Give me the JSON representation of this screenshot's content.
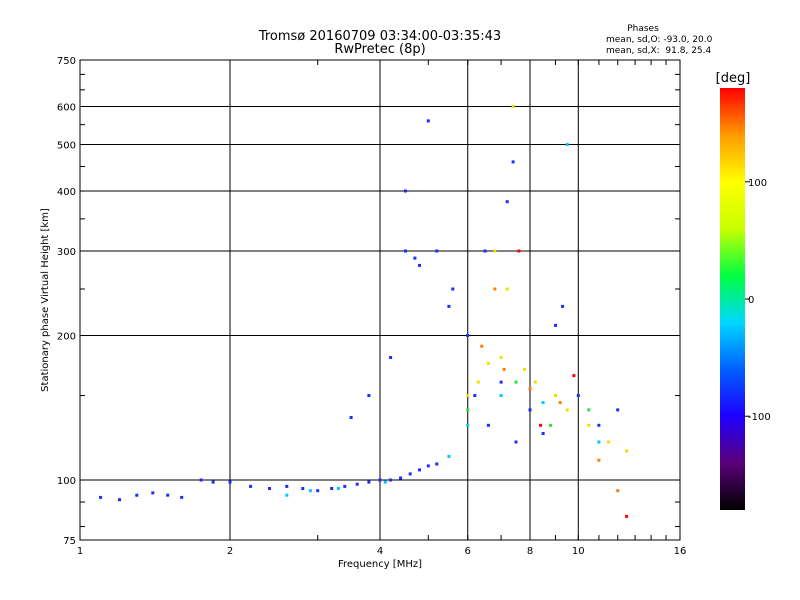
{
  "chart_data": {
    "type": "scatter",
    "title": "Tromsø 20160709 03:34:00-03:35:43",
    "subtitle": "RwPretec (8p)",
    "xlabel": "Frequency [MHz]",
    "ylabel": "Stationary phase Virtual Height [km]",
    "x_scale": "log2",
    "y_scale": "log",
    "xlim": [
      1,
      16
    ],
    "ylim": [
      75,
      750
    ],
    "x_ticks": [
      1,
      2,
      4,
      6,
      8,
      10,
      16
    ],
    "y_ticks": [
      75,
      100,
      200,
      300,
      400,
      500,
      600,
      750
    ],
    "grid": true,
    "phases_box": {
      "title": "Phases",
      "line1": "mean, sd,O: -93.0, 20.0",
      "line2": "mean, sd,X:  91.8, 25.4"
    },
    "colorbar": {
      "label": "[deg]",
      "range": [
        -180,
        180
      ],
      "ticks": [
        100,
        0,
        -100
      ],
      "colors": [
        "#000000",
        "#5a0078",
        "#1e00ff",
        "#0060ff",
        "#00d8ff",
        "#00ff40",
        "#c8ff00",
        "#ffff00",
        "#ff9a00",
        "#ff0000"
      ]
    },
    "series": [
      {
        "color": "#1f2bff",
        "points": [
          [
            1.1,
            92
          ],
          [
            1.2,
            91
          ],
          [
            1.3,
            93
          ],
          [
            1.4,
            94
          ],
          [
            1.5,
            93
          ],
          [
            1.6,
            92
          ],
          [
            1.75,
            100
          ],
          [
            1.85,
            99
          ],
          [
            2.0,
            99
          ],
          [
            2.2,
            97
          ],
          [
            2.4,
            96
          ],
          [
            2.6,
            97
          ],
          [
            2.8,
            96
          ],
          [
            3.0,
            95
          ],
          [
            3.2,
            96
          ],
          [
            3.4,
            97
          ],
          [
            3.6,
            98
          ],
          [
            3.8,
            99
          ],
          [
            4.0,
            100
          ],
          [
            4.2,
            100
          ],
          [
            4.4,
            101
          ],
          [
            4.6,
            103
          ],
          [
            4.8,
            105
          ],
          [
            5.0,
            107
          ],
          [
            5.2,
            108
          ],
          [
            3.5,
            135
          ],
          [
            3.8,
            150
          ],
          [
            4.2,
            180
          ],
          [
            4.5,
            300
          ],
          [
            4.7,
            290
          ],
          [
            4.8,
            280
          ],
          [
            4.5,
            400
          ],
          [
            5.2,
            300
          ],
          [
            5.6,
            250
          ],
          [
            6.0,
            200
          ],
          [
            6.2,
            150
          ],
          [
            6.6,
            130
          ],
          [
            7.0,
            160
          ],
          [
            7.5,
            120
          ],
          [
            8.0,
            140
          ],
          [
            8.5,
            125
          ],
          [
            9.0,
            210
          ],
          [
            9.3,
            230
          ],
          [
            10.0,
            150
          ],
          [
            11.0,
            130
          ],
          [
            12.0,
            140
          ],
          [
            5.5,
            230
          ],
          [
            6.5,
            300
          ],
          [
            7.2,
            380
          ],
          [
            7.4,
            460
          ],
          [
            5.0,
            560
          ]
        ]
      },
      {
        "color": "#00c8ff",
        "points": [
          [
            2.6,
            93
          ],
          [
            2.9,
            95
          ],
          [
            3.3,
            96
          ],
          [
            4.1,
            99
          ],
          [
            5.5,
            112
          ],
          [
            6.0,
            130
          ],
          [
            7.0,
            150
          ],
          [
            8.5,
            145
          ],
          [
            9.5,
            500
          ],
          [
            11.0,
            120
          ]
        ]
      },
      {
        "color": "#f0e000",
        "points": [
          [
            6.0,
            150
          ],
          [
            6.3,
            160
          ],
          [
            6.6,
            175
          ],
          [
            7.0,
            180
          ],
          [
            7.4,
            600
          ],
          [
            7.8,
            170
          ],
          [
            8.2,
            160
          ],
          [
            9.0,
            150
          ],
          [
            9.5,
            140
          ],
          [
            10.5,
            130
          ],
          [
            11.5,
            120
          ],
          [
            12.5,
            115
          ],
          [
            6.8,
            300
          ],
          [
            7.2,
            250
          ]
        ]
      },
      {
        "color": "#ff8000",
        "points": [
          [
            6.4,
            190
          ],
          [
            7.1,
            170
          ],
          [
            8.0,
            155
          ],
          [
            9.2,
            145
          ],
          [
            11.0,
            110
          ],
          [
            12.0,
            95
          ],
          [
            6.8,
            250
          ]
        ]
      },
      {
        "color": "#30e030",
        "points": [
          [
            6.0,
            140
          ],
          [
            7.5,
            160
          ],
          [
            8.8,
            130
          ],
          [
            10.5,
            140
          ]
        ]
      },
      {
        "color": "#ff0000",
        "points": [
          [
            7.6,
            300
          ],
          [
            9.8,
            165
          ],
          [
            12.5,
            84
          ],
          [
            8.4,
            130
          ]
        ]
      }
    ]
  }
}
